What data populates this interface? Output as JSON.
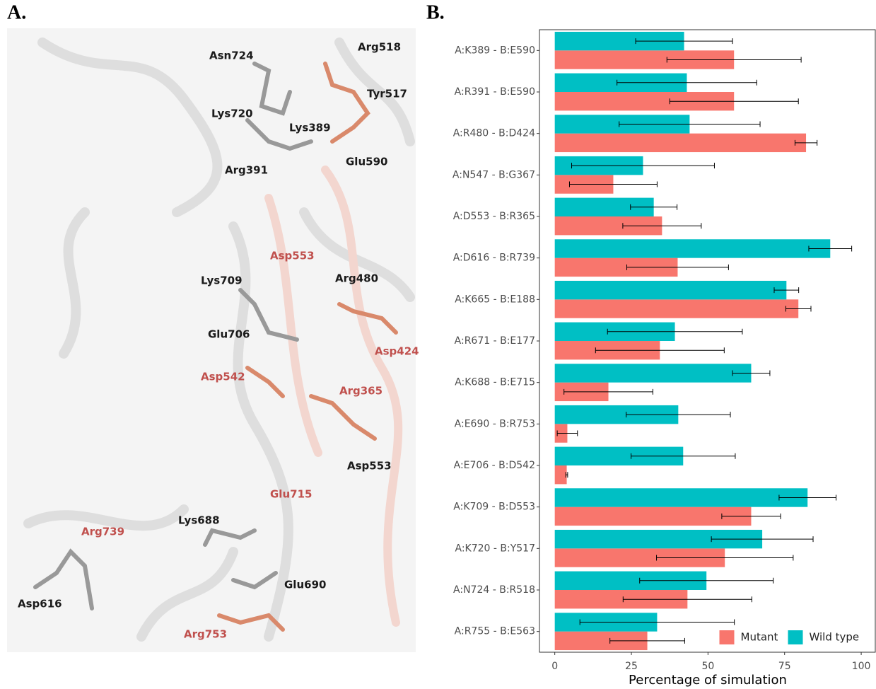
{
  "panel_labels": [
    "A.",
    "B."
  ],
  "structure": {
    "labels": [
      {
        "text": "Asn724",
        "color": "#1a1a1a"
      },
      {
        "text": "Arg518",
        "color": "#1a1a1a"
      },
      {
        "text": "Lys720",
        "color": "#1a1a1a"
      },
      {
        "text": "Tyr517",
        "color": "#1a1a1a"
      },
      {
        "text": "Lys389",
        "color": "#1a1a1a"
      },
      {
        "text": "Arg391",
        "color": "#1a1a1a"
      },
      {
        "text": "Glu590",
        "color": "#1a1a1a"
      },
      {
        "text": "Asp553",
        "color": "#c0504d"
      },
      {
        "text": "Lys709",
        "color": "#1a1a1a"
      },
      {
        "text": "Arg480",
        "color": "#1a1a1a"
      },
      {
        "text": "Glu706",
        "color": "#1a1a1a"
      },
      {
        "text": "Asp424",
        "color": "#c0504d"
      },
      {
        "text": "Asp542",
        "color": "#c0504d"
      },
      {
        "text": "Arg365",
        "color": "#c0504d"
      },
      {
        "text": "Asp553",
        "color": "#1a1a1a"
      },
      {
        "text": "Glu715",
        "color": "#c0504d"
      },
      {
        "text": "Arg739",
        "color": "#c0504d"
      },
      {
        "text": "Lys688",
        "color": "#1a1a1a"
      },
      {
        "text": "Glu690",
        "color": "#1a1a1a"
      },
      {
        "text": "Asp616",
        "color": "#1a1a1a"
      },
      {
        "text": "Arg753",
        "color": "#c0504d"
      }
    ]
  },
  "chart_data": {
    "type": "bar",
    "orientation": "horizontal",
    "x_label": "Percentage of simulation",
    "categories": [
      "A:K389 - B:E590",
      "A:R391 - B:E590",
      "A:R480 - B:D424",
      "A:N547 - B:G367",
      "A:D553 - B:R365",
      "A:D616 - B:R739",
      "A:K665 - B:E188",
      "A:R671 - B:E177",
      "A:K688 - B:E715",
      "A:E690 - B:R753",
      "A:E706 - B:D542",
      "A:K709 - B:D553",
      "A:K720 - B:Y517",
      "A:N724 - B:R518",
      "A:R755 - B:E563"
    ],
    "series": [
      {
        "name": "Mutant",
        "color": "#F8766D",
        "values": [
          58.5,
          58.5,
          82.0,
          19.1,
          35.0,
          40.1,
          79.5,
          34.3,
          17.5,
          4.1,
          3.9,
          64.1,
          55.5,
          43.3,
          30.2
        ],
        "errors": [
          21.9,
          21.0,
          3.6,
          14.3,
          12.8,
          16.6,
          4.1,
          21.0,
          14.5,
          3.3,
          0.3,
          9.6,
          22.3,
          21.0,
          12.2
        ]
      },
      {
        "name": "Wild type",
        "color": "#00BFC4",
        "values": [
          42.2,
          43.1,
          44.0,
          28.8,
          32.3,
          89.9,
          75.6,
          39.2,
          64.1,
          40.3,
          41.9,
          82.5,
          67.7,
          49.5,
          33.4
        ],
        "errors": [
          15.8,
          22.8,
          23.0,
          23.3,
          7.6,
          7.0,
          4.0,
          22.0,
          6.1,
          17.0,
          17.0,
          9.3,
          16.6,
          21.8,
          25.2
        ]
      }
    ],
    "xlim": [
      -5,
      104.6
    ],
    "xticks": [
      0,
      25,
      50,
      75,
      100
    ],
    "grid": false,
    "legend": "bottom-right"
  }
}
